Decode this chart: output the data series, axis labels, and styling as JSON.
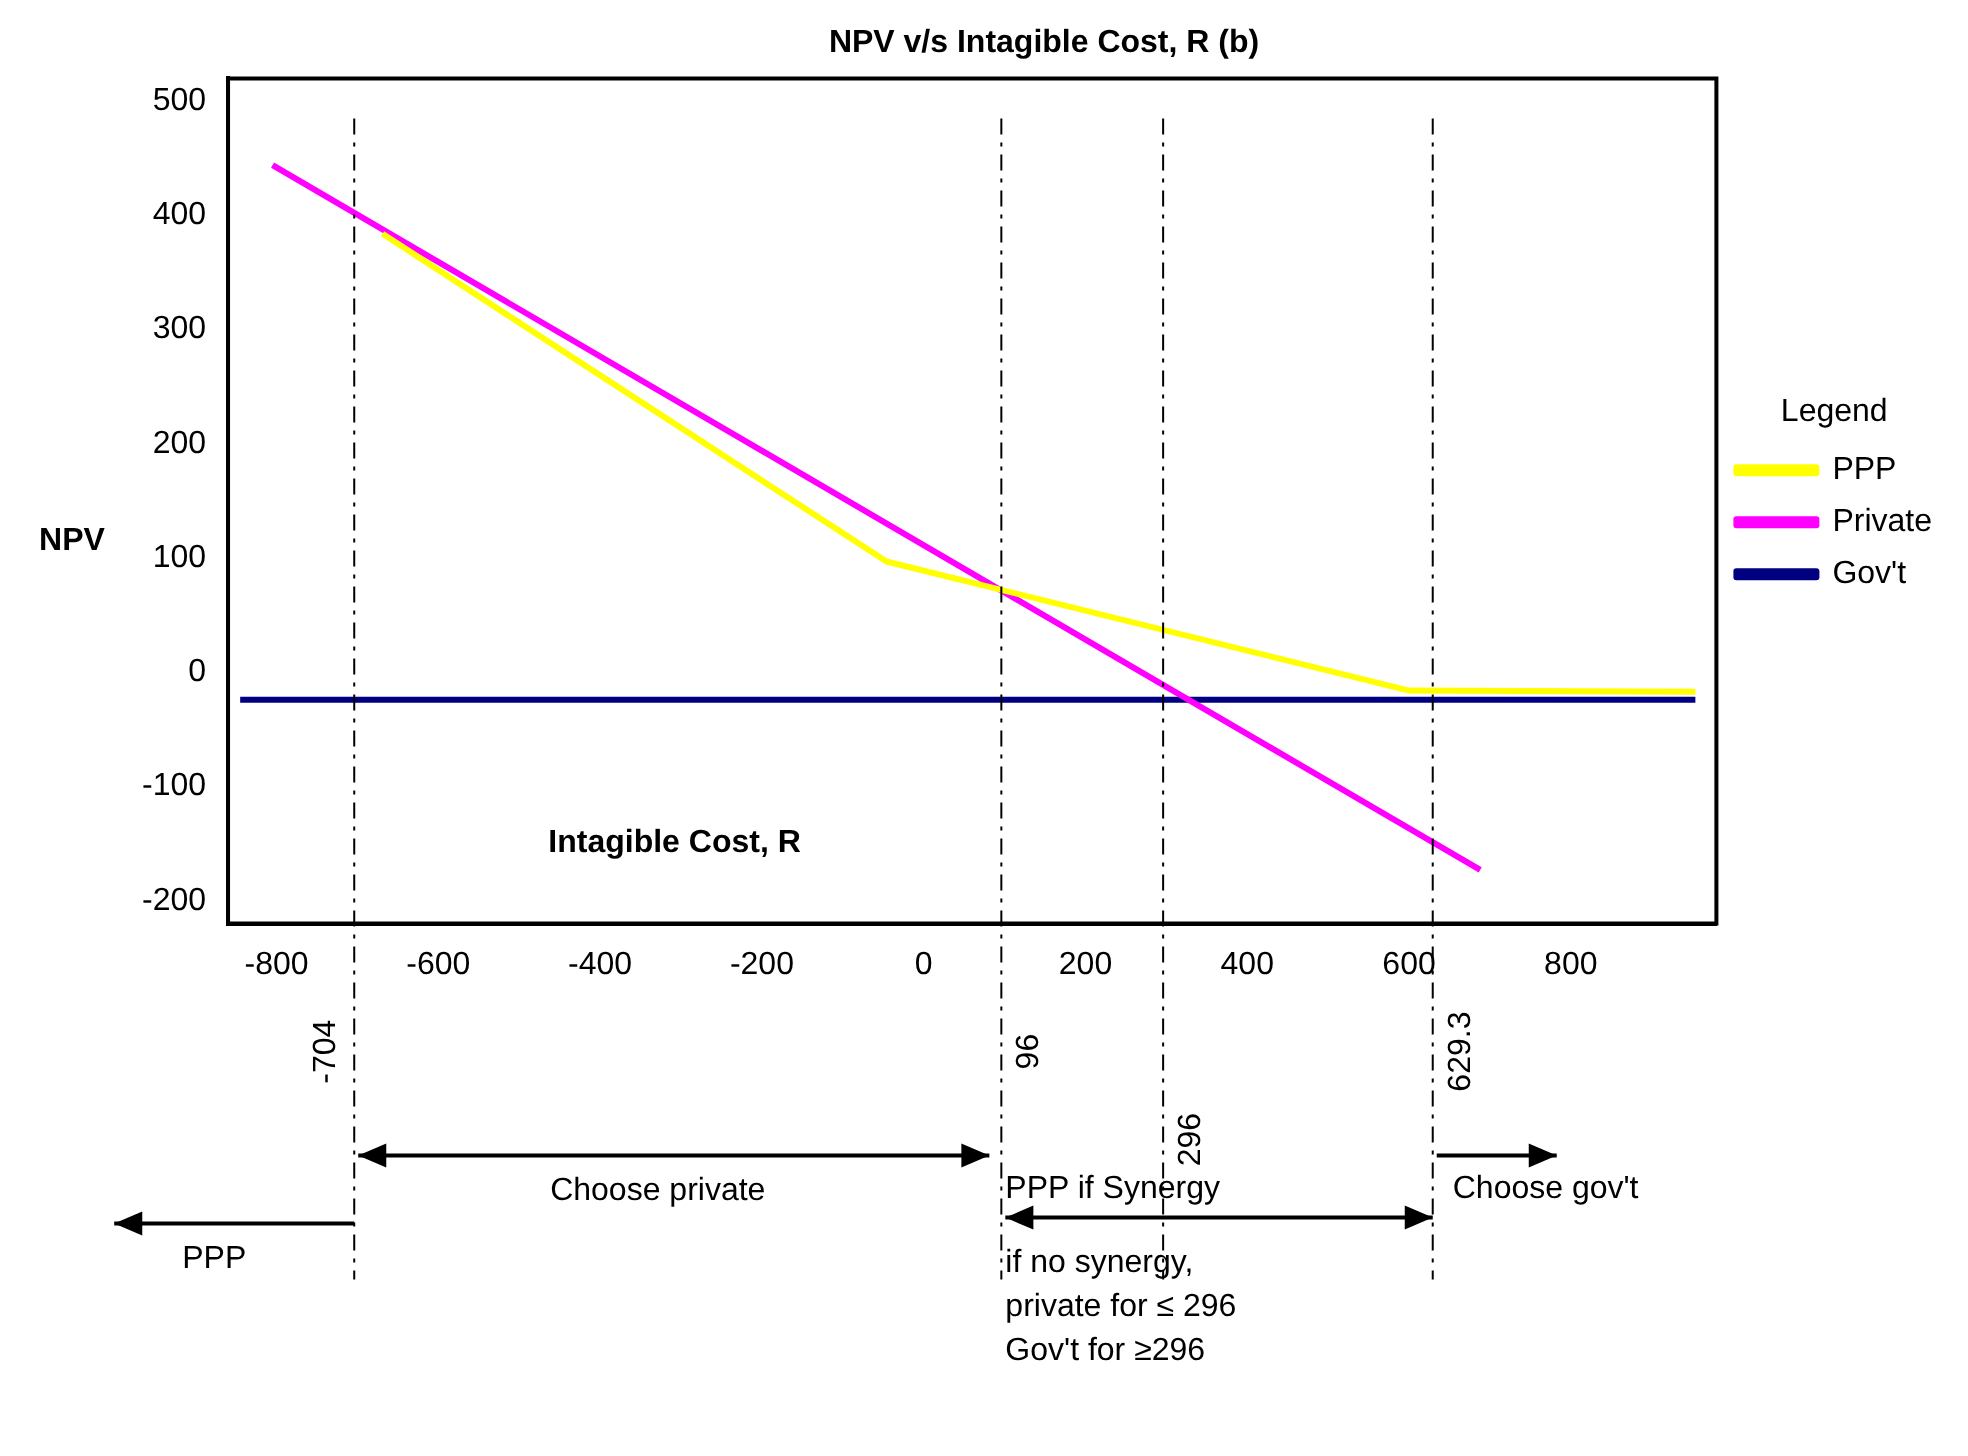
{
  "chart_data": {
    "type": "line",
    "title": "NPV v/s Intagible Cost, R (b)",
    "xlabel": "Intagible Cost, R",
    "ylabel": "NPV",
    "legend_title": "Legend",
    "series": [
      {
        "name": "PPP",
        "color": "#ffff00",
        "x": [
          -669,
          -46,
          600,
          954
        ],
        "values": [
          384,
          97,
          -16,
          -17
        ]
      },
      {
        "name": "Private",
        "color": "#ff00ff",
        "x": [
          -805,
          688
        ],
        "values": [
          444,
          -173
        ]
      },
      {
        "name": "Gov't",
        "color": "#000080",
        "x": [
          -845,
          954
        ],
        "values": [
          -24,
          -24
        ]
      }
    ],
    "xlim": [
      -860,
      980
    ],
    "xticks": [
      -800,
      -600,
      -400,
      -200,
      0,
      200,
      400,
      600,
      800
    ],
    "ylim": [
      -220,
      520
    ],
    "yticks": [
      -200,
      -100,
      0,
      100,
      200,
      300,
      400,
      500
    ],
    "grid": false,
    "legend": "right",
    "marker": "none",
    "line_style": "solid",
    "ref_lines": [
      {
        "axis": "x",
        "value": -704,
        "label": "-704",
        "line_style": "dashed"
      },
      {
        "axis": "x",
        "value": 96,
        "label": "96",
        "line_style": "dashed"
      },
      {
        "axis": "x",
        "value": 296,
        "label": "296",
        "line_style": "dashed"
      },
      {
        "axis": "x",
        "value": 629.3,
        "label": "629.3",
        "line_style": "dashed"
      }
    ],
    "annotations": [
      "Choose private",
      "PPP if Synergy",
      "Choose gov't",
      "PPP",
      "if no synergy,\nprivate for ≤ 296\nGov't for ≥296"
    ]
  }
}
